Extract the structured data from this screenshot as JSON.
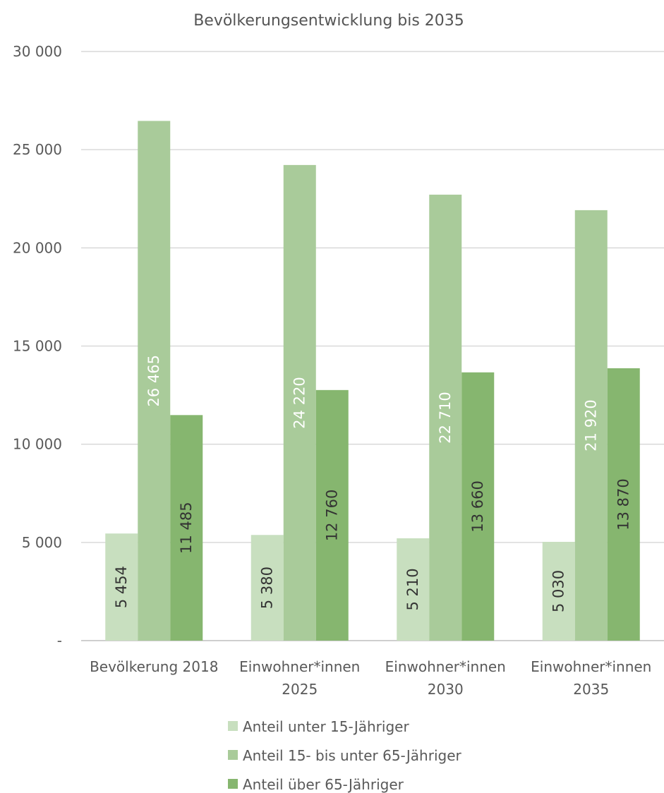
{
  "chart_data": {
    "type": "bar",
    "title": "Bevölkerungsentwicklung bis 2035",
    "xlabel": "",
    "ylabel": "",
    "ylim": [
      0,
      30000
    ],
    "y_ticks": [
      {
        "value": 0,
        "label": "-"
      },
      {
        "value": 5000,
        "label": "5 000"
      },
      {
        "value": 10000,
        "label": "10 000"
      },
      {
        "value": 15000,
        "label": "15 000"
      },
      {
        "value": 20000,
        "label": "20 000"
      },
      {
        "value": 25000,
        "label": "25 000"
      },
      {
        "value": 30000,
        "label": "30 000"
      }
    ],
    "grid": true,
    "legend_position": "bottom",
    "categories": [
      [
        "Bevölkerung 2018"
      ],
      [
        "Einwohner*innen",
        "2025"
      ],
      [
        "Einwohner*innen",
        "2030"
      ],
      [
        "Einwohner*innen",
        "2035"
      ]
    ],
    "series": [
      {
        "name": "Anteil unter 15-Jähriger",
        "color": "#c8dfbf",
        "label_color": "#333333",
        "values": [
          5454,
          5380,
          5210,
          5030
        ],
        "labels": [
          "5 454",
          "5 380",
          "5 210",
          "5 030"
        ]
      },
      {
        "name": "Anteil 15- bis unter 65-Jähriger",
        "color": "#a9cb9a",
        "label_color": "#ffffff",
        "values": [
          26465,
          24220,
          22710,
          21920
        ],
        "labels": [
          "26 465",
          "24 220",
          "22 710",
          "21 920"
        ]
      },
      {
        "name": "Anteil über 65-Jähriger",
        "color": "#86b66f",
        "label_color": "#333333",
        "values": [
          11485,
          12760,
          13660,
          13870
        ],
        "labels": [
          "11 485",
          "12 760",
          "13 660",
          "13 870"
        ]
      }
    ]
  }
}
